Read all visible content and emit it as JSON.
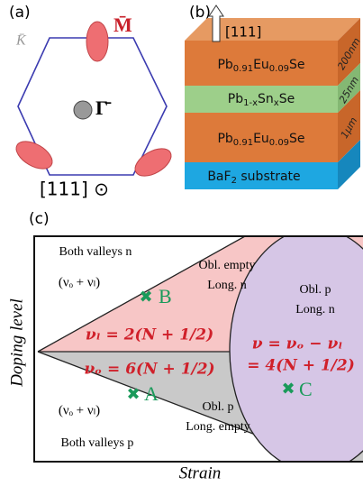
{
  "panel_a": {
    "label": "(a)",
    "k_point": "K̄",
    "m_point": "M̄",
    "gamma_point": "Γ̄",
    "direction": "[111] ⊙"
  },
  "panel_b": {
    "label": "(b)",
    "arrow_label": "[111]",
    "layers": [
      {
        "parts": [
          "Pb",
          "0.91",
          "Eu",
          "0.09",
          "Se"
        ],
        "thickness": "200nm"
      },
      {
        "parts": [
          "Pb",
          "1-x",
          "Sn",
          "x",
          "Se"
        ],
        "thickness": "25nm"
      },
      {
        "parts": [
          "Pb",
          "0.91",
          "Eu",
          "0.09",
          "Se"
        ],
        "thickness": "1μm"
      },
      {
        "parts": [
          "BaF",
          "2",
          " substrate"
        ]
      }
    ]
  },
  "panel_c": {
    "label": "(c)",
    "y_axis": "Doping level",
    "x_axis": "Strain",
    "regions": {
      "top_left": [
        "Both valleys n",
        "(νₒ + νₗ)"
      ],
      "upper_middle": [
        "Obl. empty",
        "Long. n"
      ],
      "right": [
        "Obl. p",
        "Long. n"
      ],
      "lower_middle": [
        "Obl. p",
        "Long. empty"
      ],
      "bottom_left": [
        "(νₒ + νₗ)",
        "Both valleys p"
      ]
    },
    "equations": [
      "νₗ = 2(N + 1/2)",
      "νₒ = 6(N + 1/2)",
      "ν = νₒ − νₗ",
      "= 4(N + 1/2)"
    ],
    "points": [
      "B",
      "A",
      "C"
    ]
  }
}
